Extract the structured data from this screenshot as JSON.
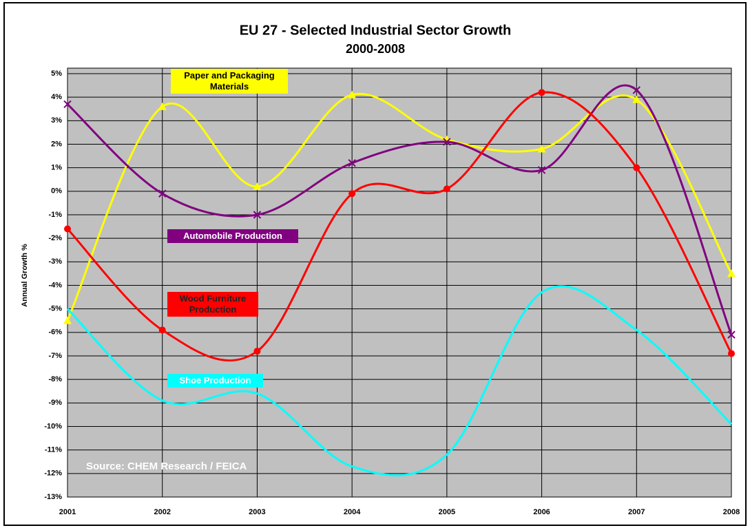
{
  "chart_data": {
    "type": "line",
    "title": "EU 27 - Selected Industrial Sector Growth",
    "subtitle": "2000-2008",
    "y_label": "Annual Growth %",
    "annotation": "Source: CHEM Research / FEICA",
    "categories": [
      "2001",
      "2002",
      "2003",
      "2004",
      "2005",
      "2006",
      "2007",
      "2008"
    ],
    "series": [
      {
        "name": "Paper and Packaging Materials",
        "color": "#ffff00",
        "marker": "triangle",
        "values": [
          -5.5,
          3.6,
          0.2,
          4.1,
          2.2,
          1.8,
          3.9,
          -3.5
        ]
      },
      {
        "name": "Automobile Production",
        "color": "#800080",
        "marker": "x",
        "values": [
          3.7,
          -0.1,
          -1.0,
          1.2,
          2.1,
          0.9,
          4.3,
          -6.1
        ]
      },
      {
        "name": "Wood Furniture Production",
        "color": "#ff0000",
        "marker": "circle",
        "values": [
          -1.6,
          -5.9,
          -6.8,
          -0.1,
          0.1,
          4.2,
          1.0,
          -6.9
        ]
      },
      {
        "name": "Shoe Production",
        "color": "#00ffff",
        "marker": "none",
        "values": [
          -5.0,
          -8.9,
          -8.6,
          -11.7,
          -11.2,
          -4.3,
          -5.9,
          -9.9
        ]
      }
    ],
    "ylim": [
      -13,
      5
    ],
    "yticks": [
      {
        "value": 5,
        "label": "5%"
      },
      {
        "value": 4,
        "label": "4%"
      },
      {
        "value": 3,
        "label": "3%"
      },
      {
        "value": 2,
        "label": "2%"
      },
      {
        "value": 1,
        "label": "1%"
      },
      {
        "value": 0,
        "label": "0%"
      },
      {
        "value": -1,
        "label": "-1%"
      },
      {
        "value": -2,
        "label": "-2%"
      },
      {
        "value": -3,
        "label": "-3%"
      },
      {
        "value": -4,
        "label": "-4%"
      },
      {
        "value": -5,
        "label": "-5%"
      },
      {
        "value": -6,
        "label": "-6%"
      },
      {
        "value": -7,
        "label": "-7%"
      },
      {
        "value": -8,
        "label": "-8%"
      },
      {
        "value": -9,
        "label": "-9%"
      },
      {
        "value": -10,
        "label": "-10%"
      },
      {
        "value": -11,
        "label": "-11%"
      },
      {
        "value": -12,
        "label": "-12%"
      },
      {
        "value": -13,
        "label": "-13%"
      }
    ],
    "grid": true
  }
}
